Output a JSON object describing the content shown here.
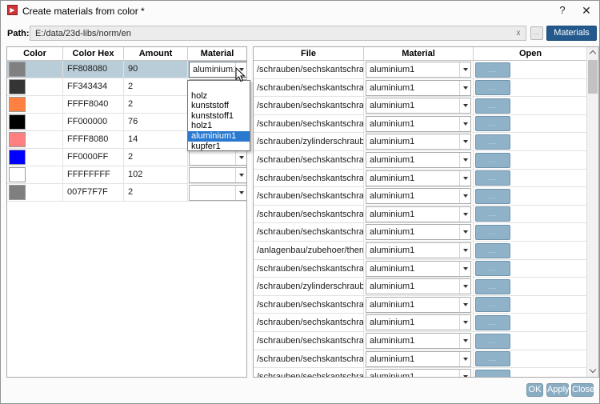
{
  "window": {
    "title": "Create materials from color *",
    "help_icon": "?",
    "close_icon": "✕",
    "app_icon_glyph": "▶"
  },
  "path_bar": {
    "label": "Path:",
    "value": "E:/data/23d-libs/norm/en",
    "clear_icon": "x",
    "browse_label": "...",
    "materials_label": "Materials"
  },
  "left_table": {
    "headers": [
      "Color",
      "Color Hex",
      "Amount",
      "Material"
    ],
    "rows": [
      {
        "color": "#808080",
        "hex": "FF808080",
        "amount": "90",
        "material": "aluminium1",
        "selected": true
      },
      {
        "color": "#343434",
        "hex": "FF343434",
        "amount": "2",
        "material": ""
      },
      {
        "color": "#FF8040",
        "hex": "FFFF8040",
        "amount": "2",
        "material": ""
      },
      {
        "color": "#000000",
        "hex": "FF000000",
        "amount": "76",
        "material": ""
      },
      {
        "color": "#FF8080",
        "hex": "FFFF8080",
        "amount": "14",
        "material": ""
      },
      {
        "color": "#0000FF",
        "hex": "FF0000FF",
        "amount": "2",
        "material": ""
      },
      {
        "color": "#FFFFFF",
        "hex": "FFFFFFFF",
        "amount": "102",
        "material": ""
      },
      {
        "color": "#7F7F7F",
        "hex": "007F7F7F",
        "amount": "2",
        "material": ""
      }
    ]
  },
  "material_dropdown": {
    "items": [
      "",
      "holz",
      "kunststoff",
      "kunststoff1",
      "holz1",
      "aluminium1",
      "kupfer1"
    ],
    "selected": "aluminium1"
  },
  "right_table": {
    "headers": [
      "File",
      "Material",
      "Open"
    ],
    "open_button_label": "...",
    "rows": [
      {
        "file": "/schrauben/sechskantschraub...",
        "material": "aluminium1"
      },
      {
        "file": "/schrauben/sechskantschraub...",
        "material": "aluminium1"
      },
      {
        "file": "/schrauben/sechskantschraub...",
        "material": "aluminium1"
      },
      {
        "file": "/schrauben/sechskantschraub...",
        "material": "aluminium1"
      },
      {
        "file": "/schrauben/zylinderschrauben...",
        "material": "aluminium1"
      },
      {
        "file": "/schrauben/sechskantschraub...",
        "material": "aluminium1"
      },
      {
        "file": "/schrauben/sechskantschraub...",
        "material": "aluminium1"
      },
      {
        "file": "/schrauben/sechskantschraub...",
        "material": "aluminium1"
      },
      {
        "file": "/schrauben/sechskantschraub...",
        "material": "aluminium1"
      },
      {
        "file": "/schrauben/sechskantschraub...",
        "material": "aluminium1"
      },
      {
        "file": "/anlagenbau/zubehoer/therm...",
        "material": "aluminium1"
      },
      {
        "file": "/schrauben/sechskantschraub...",
        "material": "aluminium1"
      },
      {
        "file": "/schrauben/zylinderschrauben...",
        "material": "aluminium1"
      },
      {
        "file": "/schrauben/sechskantschraub...",
        "material": "aluminium1"
      },
      {
        "file": "/schrauben/sechskantschraub...",
        "material": "aluminium1"
      },
      {
        "file": "/schrauben/sechskantschraub...",
        "material": "aluminium1"
      },
      {
        "file": "/schrauben/sechskantschraub...",
        "material": "aluminium1"
      },
      {
        "file": "/schrauben/sechskantschraub...",
        "material": "aluminium1"
      }
    ]
  },
  "footer": {
    "ok": "OK",
    "apply": "Apply",
    "close": "Close"
  },
  "colors": {
    "selection_row": "#b9cdd8",
    "dropdown_highlight": "#2979d1",
    "open_button": "#8fb2c9",
    "materials_button": "#23598c",
    "footer_button": "#8badc3"
  }
}
